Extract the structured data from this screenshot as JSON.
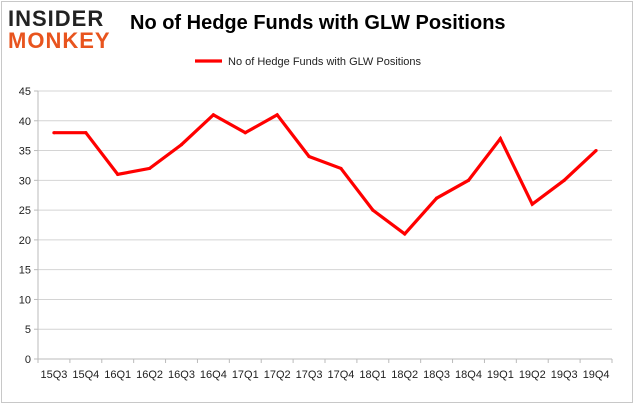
{
  "logo": {
    "top_text": "INSIDER",
    "bottom_text": "MONKEY"
  },
  "chart_data": {
    "type": "line",
    "title": "No of Hedge Funds with GLW Positions",
    "categories": [
      "15Q3",
      "15Q4",
      "16Q1",
      "16Q2",
      "16Q3",
      "16Q4",
      "17Q1",
      "17Q2",
      "17Q3",
      "17Q4",
      "18Q1",
      "18Q2",
      "18Q3",
      "18Q4",
      "19Q1",
      "19Q2",
      "19Q3",
      "19Q4"
    ],
    "series": [
      {
        "name": "No of Hedge Funds with GLW Positions",
        "color": "#ff0000",
        "values": [
          38,
          38,
          31,
          32,
          36,
          41,
          38,
          41,
          34,
          32,
          25,
          21,
          27,
          30,
          37,
          26,
          30,
          35
        ]
      }
    ],
    "xlabel": "",
    "ylabel": "",
    "ylim": [
      0,
      45
    ],
    "yticks": [
      0,
      5,
      10,
      15,
      20,
      25,
      30,
      35,
      40,
      45
    ],
    "grid": true,
    "legend": "top-center"
  }
}
